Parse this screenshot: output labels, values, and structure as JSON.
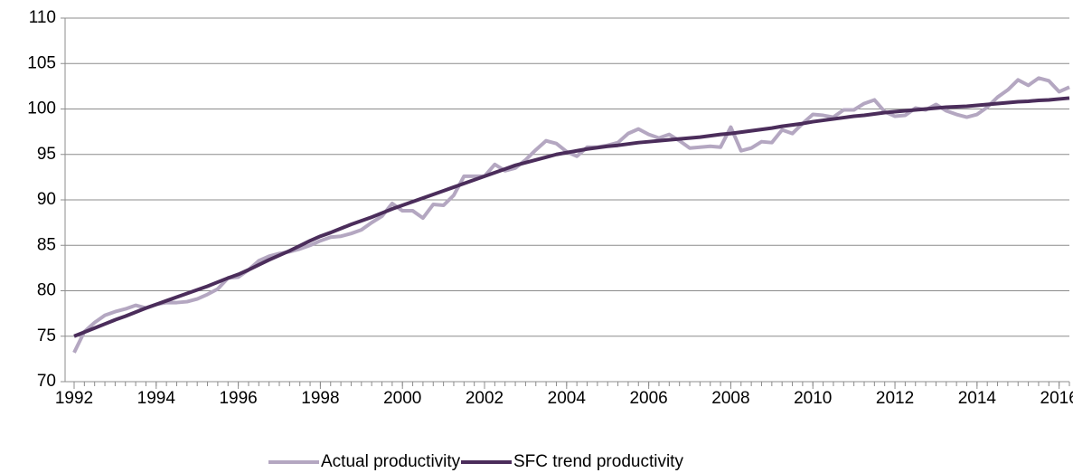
{
  "chart_data": {
    "type": "line",
    "x": [
      1992,
      1992.25,
      1992.5,
      1992.75,
      1993,
      1993.25,
      1993.5,
      1993.75,
      1994,
      1994.25,
      1994.5,
      1994.75,
      1995,
      1995.25,
      1995.5,
      1995.75,
      1996,
      1996.25,
      1996.5,
      1996.75,
      1997,
      1997.25,
      1997.5,
      1997.75,
      1998,
      1998.25,
      1998.5,
      1998.75,
      1999,
      1999.25,
      1999.5,
      1999.75,
      2000,
      2000.25,
      2000.5,
      2000.75,
      2001,
      2001.25,
      2001.5,
      2001.75,
      2002,
      2002.25,
      2002.5,
      2002.75,
      2003,
      2003.25,
      2003.5,
      2003.75,
      2004,
      2004.25,
      2004.5,
      2004.75,
      2005,
      2005.25,
      2005.5,
      2005.75,
      2006,
      2006.25,
      2006.5,
      2006.75,
      2007,
      2007.25,
      2007.5,
      2007.75,
      2008,
      2008.25,
      2008.5,
      2008.75,
      2009,
      2009.25,
      2009.5,
      2009.75,
      2010,
      2010.25,
      2010.5,
      2010.75,
      2011,
      2011.25,
      2011.5,
      2011.75,
      2012,
      2012.25,
      2012.5,
      2012.75,
      2013,
      2013.25,
      2013.5,
      2013.75,
      2014,
      2014.25,
      2014.5,
      2014.75,
      2015,
      2015.25,
      2015.5,
      2015.75,
      2016,
      2016.25
    ],
    "series": [
      {
        "name": "Actual productivity",
        "color": "#b4a7c1",
        "values": [
          73.2,
          75.5,
          76.5,
          77.3,
          77.7,
          78.0,
          78.4,
          78.1,
          78.5,
          78.7,
          78.7,
          78.8,
          79.1,
          79.6,
          80.2,
          81.4,
          81.5,
          82.3,
          83.3,
          83.8,
          84.1,
          84.3,
          84.6,
          85.0,
          85.5,
          85.9,
          86.0,
          86.3,
          86.7,
          87.5,
          88.2,
          89.6,
          88.8,
          88.8,
          88.0,
          89.5,
          89.4,
          90.5,
          92.6,
          92.6,
          92.6,
          93.9,
          93.2,
          93.5,
          94.4,
          95.5,
          96.5,
          96.2,
          95.3,
          94.8,
          95.8,
          95.8,
          96.0,
          96.3,
          97.3,
          97.8,
          97.2,
          96.8,
          97.2,
          96.5,
          95.7,
          95.8,
          95.9,
          95.8,
          98.0,
          95.4,
          95.7,
          96.4,
          96.3,
          97.7,
          97.3,
          98.4,
          99.4,
          99.3,
          99.1,
          99.9,
          99.9,
          100.6,
          101.0,
          99.7,
          99.2,
          99.3,
          100.1,
          99.9,
          100.5,
          99.8,
          99.4,
          99.1,
          99.4,
          100.2,
          101.3,
          102.1,
          103.2,
          102.6,
          103.4,
          103.1,
          101.9,
          102.4
        ]
      },
      {
        "name": "SFC trend productivity",
        "color": "#4b2d5b",
        "values": [
          75.0,
          75.45,
          75.9,
          76.35,
          76.8,
          77.2,
          77.65,
          78.1,
          78.5,
          78.9,
          79.3,
          79.7,
          80.1,
          80.5,
          80.95,
          81.4,
          81.8,
          82.3,
          82.85,
          83.4,
          83.9,
          84.4,
          84.95,
          85.5,
          86.0,
          86.4,
          86.85,
          87.3,
          87.7,
          88.1,
          88.55,
          89.0,
          89.4,
          89.8,
          90.2,
          90.6,
          91.0,
          91.4,
          91.8,
          92.2,
          92.6,
          93.0,
          93.4,
          93.8,
          94.1,
          94.4,
          94.7,
          95.0,
          95.2,
          95.4,
          95.6,
          95.75,
          95.9,
          96.0,
          96.15,
          96.3,
          96.4,
          96.5,
          96.6,
          96.7,
          96.8,
          96.9,
          97.05,
          97.2,
          97.3,
          97.45,
          97.6,
          97.75,
          97.9,
          98.1,
          98.25,
          98.4,
          98.6,
          98.75,
          98.9,
          99.05,
          99.2,
          99.3,
          99.45,
          99.6,
          99.7,
          99.8,
          99.9,
          100.0,
          100.1,
          100.2,
          100.25,
          100.3,
          100.4,
          100.5,
          100.6,
          100.7,
          100.8,
          100.85,
          100.95,
          101.0,
          101.1,
          101.2
        ]
      }
    ],
    "xlim": [
      1991.78,
      2016.25
    ],
    "xticks": [
      1992,
      1994,
      1996,
      1998,
      2000,
      2002,
      2004,
      2006,
      2008,
      2010,
      2012,
      2014,
      2016
    ],
    "ylim": [
      70,
      110
    ],
    "yticks": [
      70,
      75,
      80,
      85,
      90,
      95,
      100,
      105,
      110
    ],
    "grid": true,
    "legend": "bottom"
  }
}
